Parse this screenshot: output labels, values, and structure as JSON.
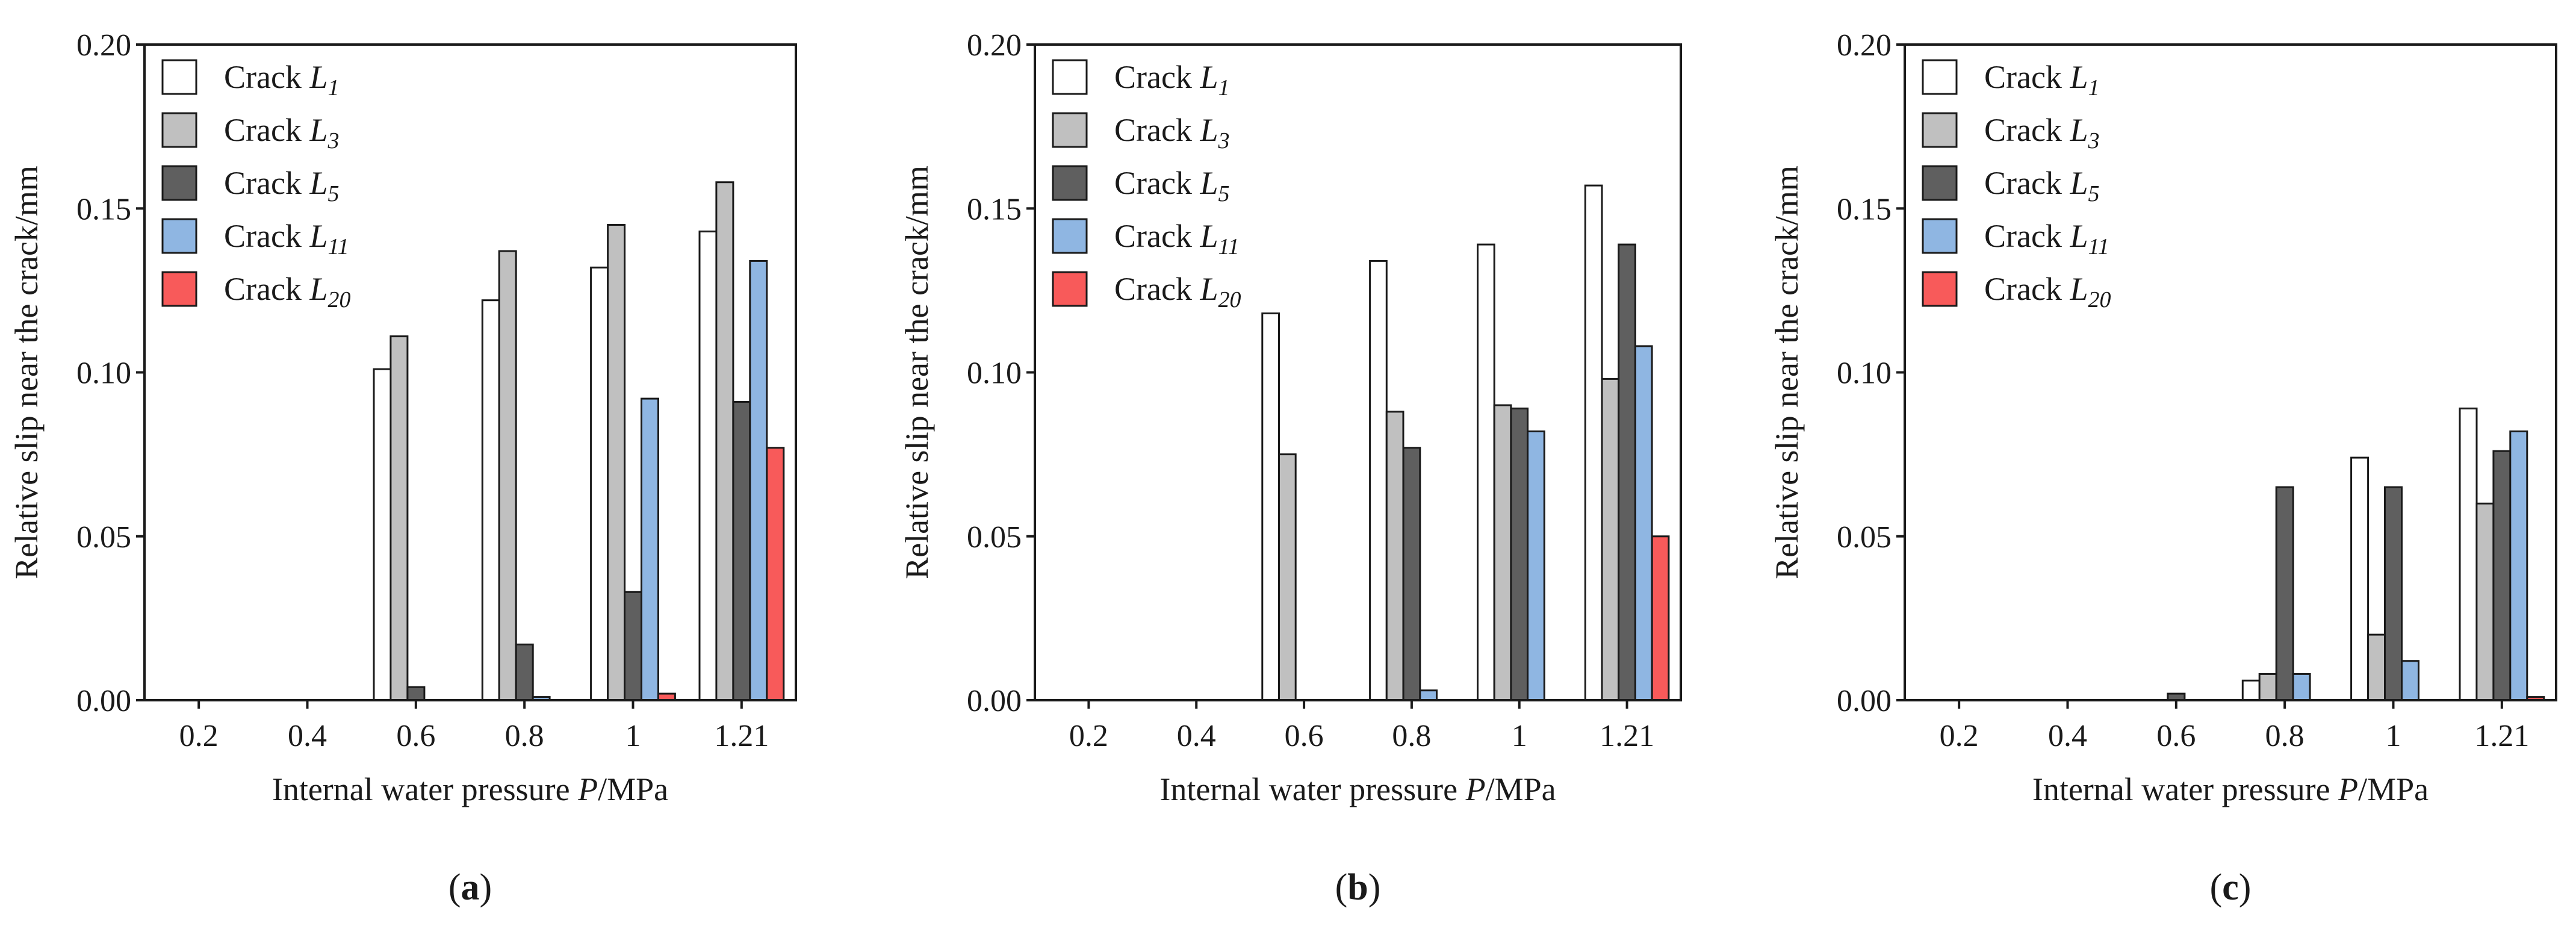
{
  "chart_data": [
    {
      "type": "bar",
      "panel": "a",
      "panel_label": "a",
      "xlabel_prefix": "Internal water pressure ",
      "xlabel_var": "P",
      "xlabel_suffix": "/MPa",
      "ylabel": "Relative slip near the crack/mm",
      "ylim": [
        0,
        0.2
      ],
      "yticks": [
        "0.00",
        "0.05",
        "0.10",
        "0.15",
        "0.20"
      ],
      "categories": [
        "0.2",
        "0.4",
        "0.6",
        "0.8",
        "1",
        "1.21"
      ],
      "legend_position": "top-left",
      "series": [
        {
          "name": "Crack L1",
          "label": "Crack ",
          "var": "L",
          "sub": "1",
          "color": "#ffffff",
          "values": [
            0,
            0,
            0.101,
            0.122,
            0.132,
            0.143
          ]
        },
        {
          "name": "Crack L3",
          "label": "Crack ",
          "var": "L",
          "sub": "3",
          "color": "#c0c0c0",
          "values": [
            0,
            0,
            0.111,
            0.137,
            0.145,
            0.158
          ]
        },
        {
          "name": "Crack L5",
          "label": "Crack ",
          "var": "L",
          "sub": "5",
          "color": "#5f5f5f",
          "values": [
            0,
            0,
            0.004,
            0.017,
            0.033,
            0.091
          ]
        },
        {
          "name": "Crack L11",
          "label": "Crack ",
          "var": "L",
          "sub": "11",
          "color": "#8fb6e2",
          "values": [
            0,
            0,
            0,
            0.001,
            0.092,
            0.134
          ]
        },
        {
          "name": "Crack L20",
          "label": "Crack ",
          "var": "L",
          "sub": "20",
          "color": "#f85a5a",
          "values": [
            0,
            0,
            0,
            0,
            0.002,
            0.077
          ]
        }
      ]
    },
    {
      "type": "bar",
      "panel": "b",
      "panel_label": "b",
      "xlabel_prefix": "Internal water pressure ",
      "xlabel_var": "P",
      "xlabel_suffix": "/MPa",
      "ylabel": "Relative slip near the crack/mm",
      "ylim": [
        0,
        0.2
      ],
      "yticks": [
        "0.00",
        "0.05",
        "0.10",
        "0.15",
        "0.20"
      ],
      "categories": [
        "0.2",
        "0.4",
        "0.6",
        "0.8",
        "1",
        "1.21"
      ],
      "legend_position": "top-left",
      "series": [
        {
          "name": "Crack L1",
          "label": "Crack ",
          "var": "L",
          "sub": "1",
          "color": "#ffffff",
          "values": [
            0,
            0,
            0.118,
            0.134,
            0.139,
            0.157
          ]
        },
        {
          "name": "Crack L3",
          "label": "Crack ",
          "var": "L",
          "sub": "3",
          "color": "#c0c0c0",
          "values": [
            0,
            0,
            0.075,
            0.088,
            0.09,
            0.098
          ]
        },
        {
          "name": "Crack L5",
          "label": "Crack ",
          "var": "L",
          "sub": "5",
          "color": "#5f5f5f",
          "values": [
            0,
            0,
            0,
            0.077,
            0.089,
            0.139
          ]
        },
        {
          "name": "Crack L11",
          "label": "Crack ",
          "var": "L",
          "sub": "11",
          "color": "#8fb6e2",
          "values": [
            0,
            0,
            0,
            0.003,
            0.082,
            0.108
          ]
        },
        {
          "name": "Crack L20",
          "label": "Crack ",
          "var": "L",
          "sub": "20",
          "color": "#f85a5a",
          "values": [
            0,
            0,
            0,
            0,
            0,
            0.05
          ]
        }
      ]
    },
    {
      "type": "bar",
      "panel": "c",
      "panel_label": "c",
      "xlabel_prefix": "Internal water pressure ",
      "xlabel_var": "P",
      "xlabel_suffix": "/MPa",
      "ylabel": "Relative slip near the crack/mm",
      "ylim": [
        0,
        0.2
      ],
      "yticks": [
        "0.00",
        "0.05",
        "0.10",
        "0.15",
        "0.20"
      ],
      "categories": [
        "0.2",
        "0.4",
        "0.6",
        "0.8",
        "1",
        "1.21"
      ],
      "legend_position": "top-left",
      "series": [
        {
          "name": "Crack L1",
          "label": "Crack ",
          "var": "L",
          "sub": "1",
          "color": "#ffffff",
          "values": [
            0,
            0,
            0,
            0.006,
            0.074,
            0.089
          ]
        },
        {
          "name": "Crack L3",
          "label": "Crack ",
          "var": "L",
          "sub": "3",
          "color": "#c0c0c0",
          "values": [
            0,
            0,
            0,
            0.008,
            0.02,
            0.06
          ]
        },
        {
          "name": "Crack L5",
          "label": "Crack ",
          "var": "L",
          "sub": "5",
          "color": "#5f5f5f",
          "values": [
            0,
            0,
            0.002,
            0.065,
            0.065,
            0.076
          ]
        },
        {
          "name": "Crack L11",
          "label": "Crack ",
          "var": "L",
          "sub": "11",
          "color": "#8fb6e2",
          "values": [
            0,
            0,
            0,
            0.008,
            0.012,
            0.082
          ]
        },
        {
          "name": "Crack L20",
          "label": "Crack ",
          "var": "L",
          "sub": "20",
          "color": "#f85a5a",
          "values": [
            0,
            0,
            0,
            0,
            0,
            0.001
          ]
        }
      ]
    }
  ]
}
